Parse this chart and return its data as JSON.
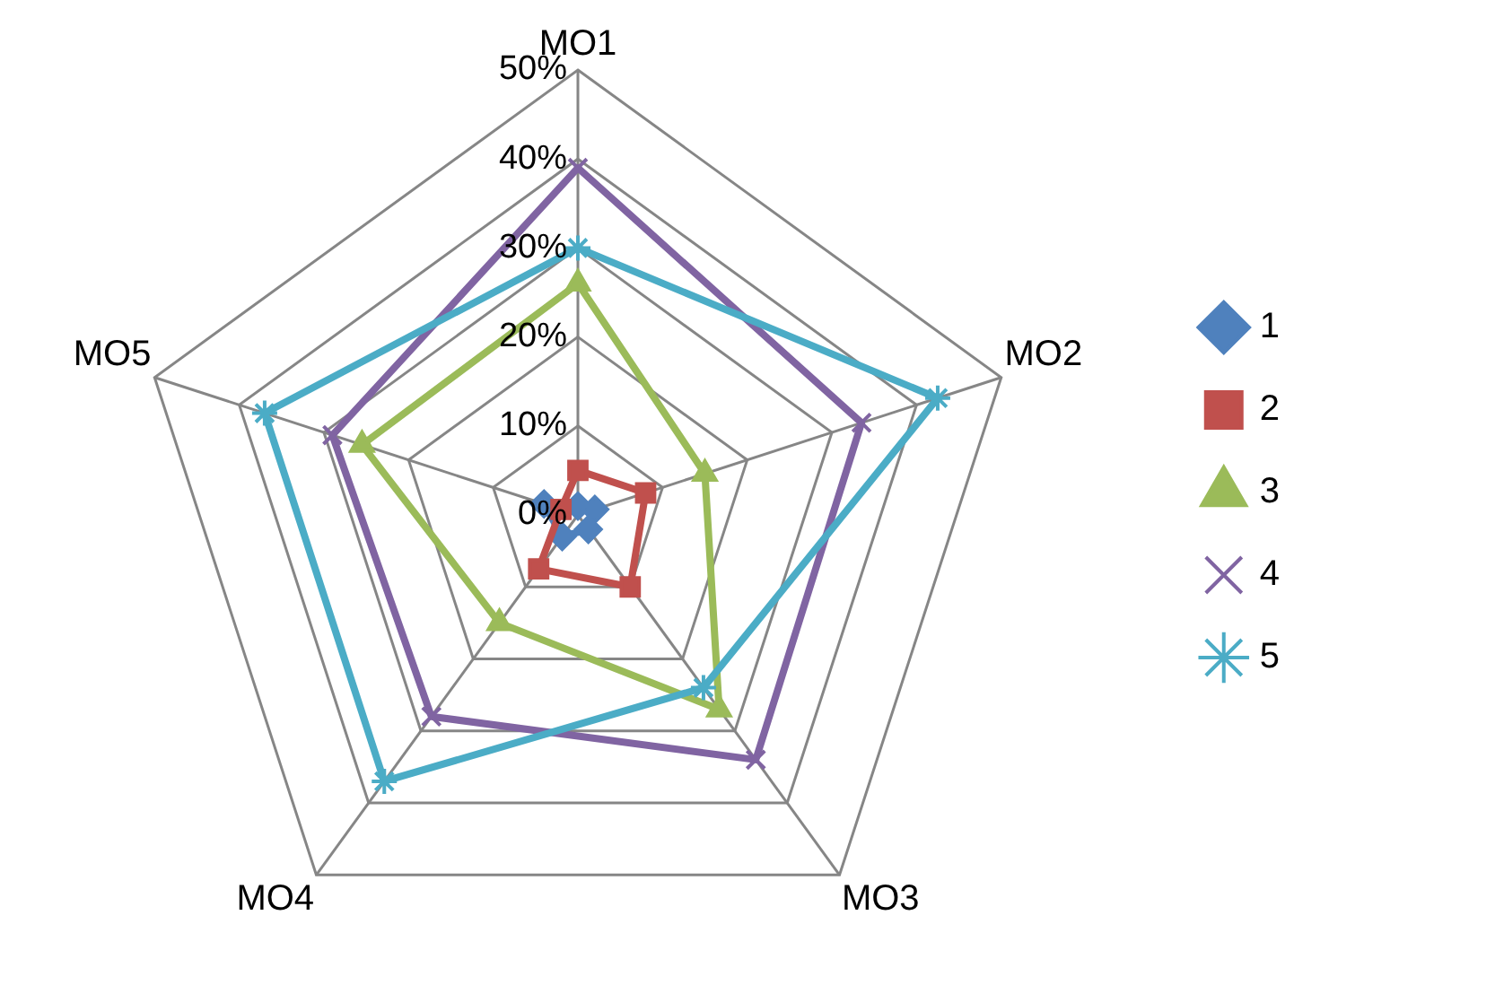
{
  "chart_data": {
    "type": "radar",
    "categories": [
      "MO1",
      "MO2",
      "MO3",
      "MO4",
      "MO5"
    ],
    "ylim": [
      0,
      50
    ],
    "yticks": [
      {
        "value": 0,
        "label": "0%"
      },
      {
        "value": 10,
        "label": "10%"
      },
      {
        "value": 20,
        "label": "20%"
      },
      {
        "value": 30,
        "label": "30%"
      },
      {
        "value": 40,
        "label": "40%"
      },
      {
        "value": 50,
        "label": "50%"
      }
    ],
    "grid": true,
    "legend": "right",
    "series": [
      {
        "name": "1",
        "color": "#4f81bd",
        "marker": "diamond",
        "values": [
          1,
          2,
          2,
          3,
          4
        ]
      },
      {
        "name": "2",
        "color": "#c0504d",
        "marker": "square",
        "values": [
          5,
          8,
          10,
          7.5,
          2
        ]
      },
      {
        "name": "3",
        "color": "#9bbb59",
        "marker": "triangle",
        "values": [
          26,
          15,
          27,
          15,
          25.5
        ]
      },
      {
        "name": "4",
        "color": "#8064a2",
        "marker": "cross",
        "values": [
          39,
          33.5,
          34,
          28,
          29
        ]
      },
      {
        "name": "5",
        "color": "#4bacc6",
        "marker": "star",
        "values": [
          30,
          42.5,
          24,
          37,
          37
        ]
      }
    ]
  }
}
